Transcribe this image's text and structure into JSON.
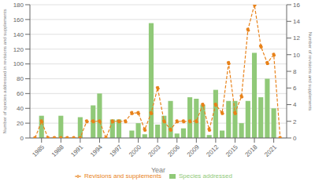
{
  "chart_data": {
    "type": "bar",
    "xlabel": "Year",
    "ylabel": "Number of species addressed in revisions and supplements",
    "y2label": "Number of revisions and supplements",
    "x": [
      1984,
      1985,
      1986,
      1987,
      1988,
      1989,
      1990,
      1991,
      1992,
      1993,
      1994,
      1995,
      1996,
      1997,
      1998,
      1999,
      2000,
      2001,
      2002,
      2003,
      2004,
      2005,
      2006,
      2007,
      2008,
      2009,
      2010,
      2011,
      2012,
      2013,
      2014,
      2015,
      2016,
      2017,
      2018,
      2019,
      2020,
      2021,
      2022
    ],
    "series": [
      {
        "name": "Species addressed",
        "type": "bar",
        "color": "#90C978",
        "values": [
          0,
          30,
          0,
          0,
          30,
          0,
          0,
          28,
          0,
          44,
          60,
          0,
          25,
          25,
          0,
          10,
          20,
          5,
          155,
          18,
          30,
          50,
          6,
          13,
          55,
          53,
          45,
          4,
          65,
          10,
          50,
          50,
          20,
          50,
          115,
          55,
          80,
          40,
          0
        ]
      },
      {
        "name": "Revisions and supplements",
        "type": "line",
        "axis": "y2",
        "color": "#E8821A",
        "marker": "circle",
        "line_style": "dashed",
        "values": [
          0,
          2,
          0,
          0,
          0,
          0,
          0,
          0,
          2,
          2,
          2,
          0,
          2,
          2,
          2,
          3,
          3,
          1,
          3,
          6,
          2,
          1,
          2,
          2,
          2,
          2,
          4,
          1,
          4,
          3,
          9,
          3,
          5,
          13,
          16,
          11,
          9,
          10,
          0
        ]
      }
    ],
    "xlim": [
      1983.2,
      2023.0
    ],
    "xticks": [
      1985,
      1988,
      1991,
      1994,
      1997,
      2000,
      2003,
      2006,
      2009,
      2012,
      2015,
      2018,
      2021
    ],
    "ylim": [
      0,
      180
    ],
    "yticks": [
      0,
      20,
      40,
      60,
      80,
      100,
      120,
      140,
      160,
      180
    ],
    "y2lim": [
      0,
      16
    ],
    "y2ticks": [
      0,
      2,
      4,
      6,
      8,
      10,
      12,
      14,
      16
    ],
    "grid": true,
    "legend": "bottom"
  }
}
